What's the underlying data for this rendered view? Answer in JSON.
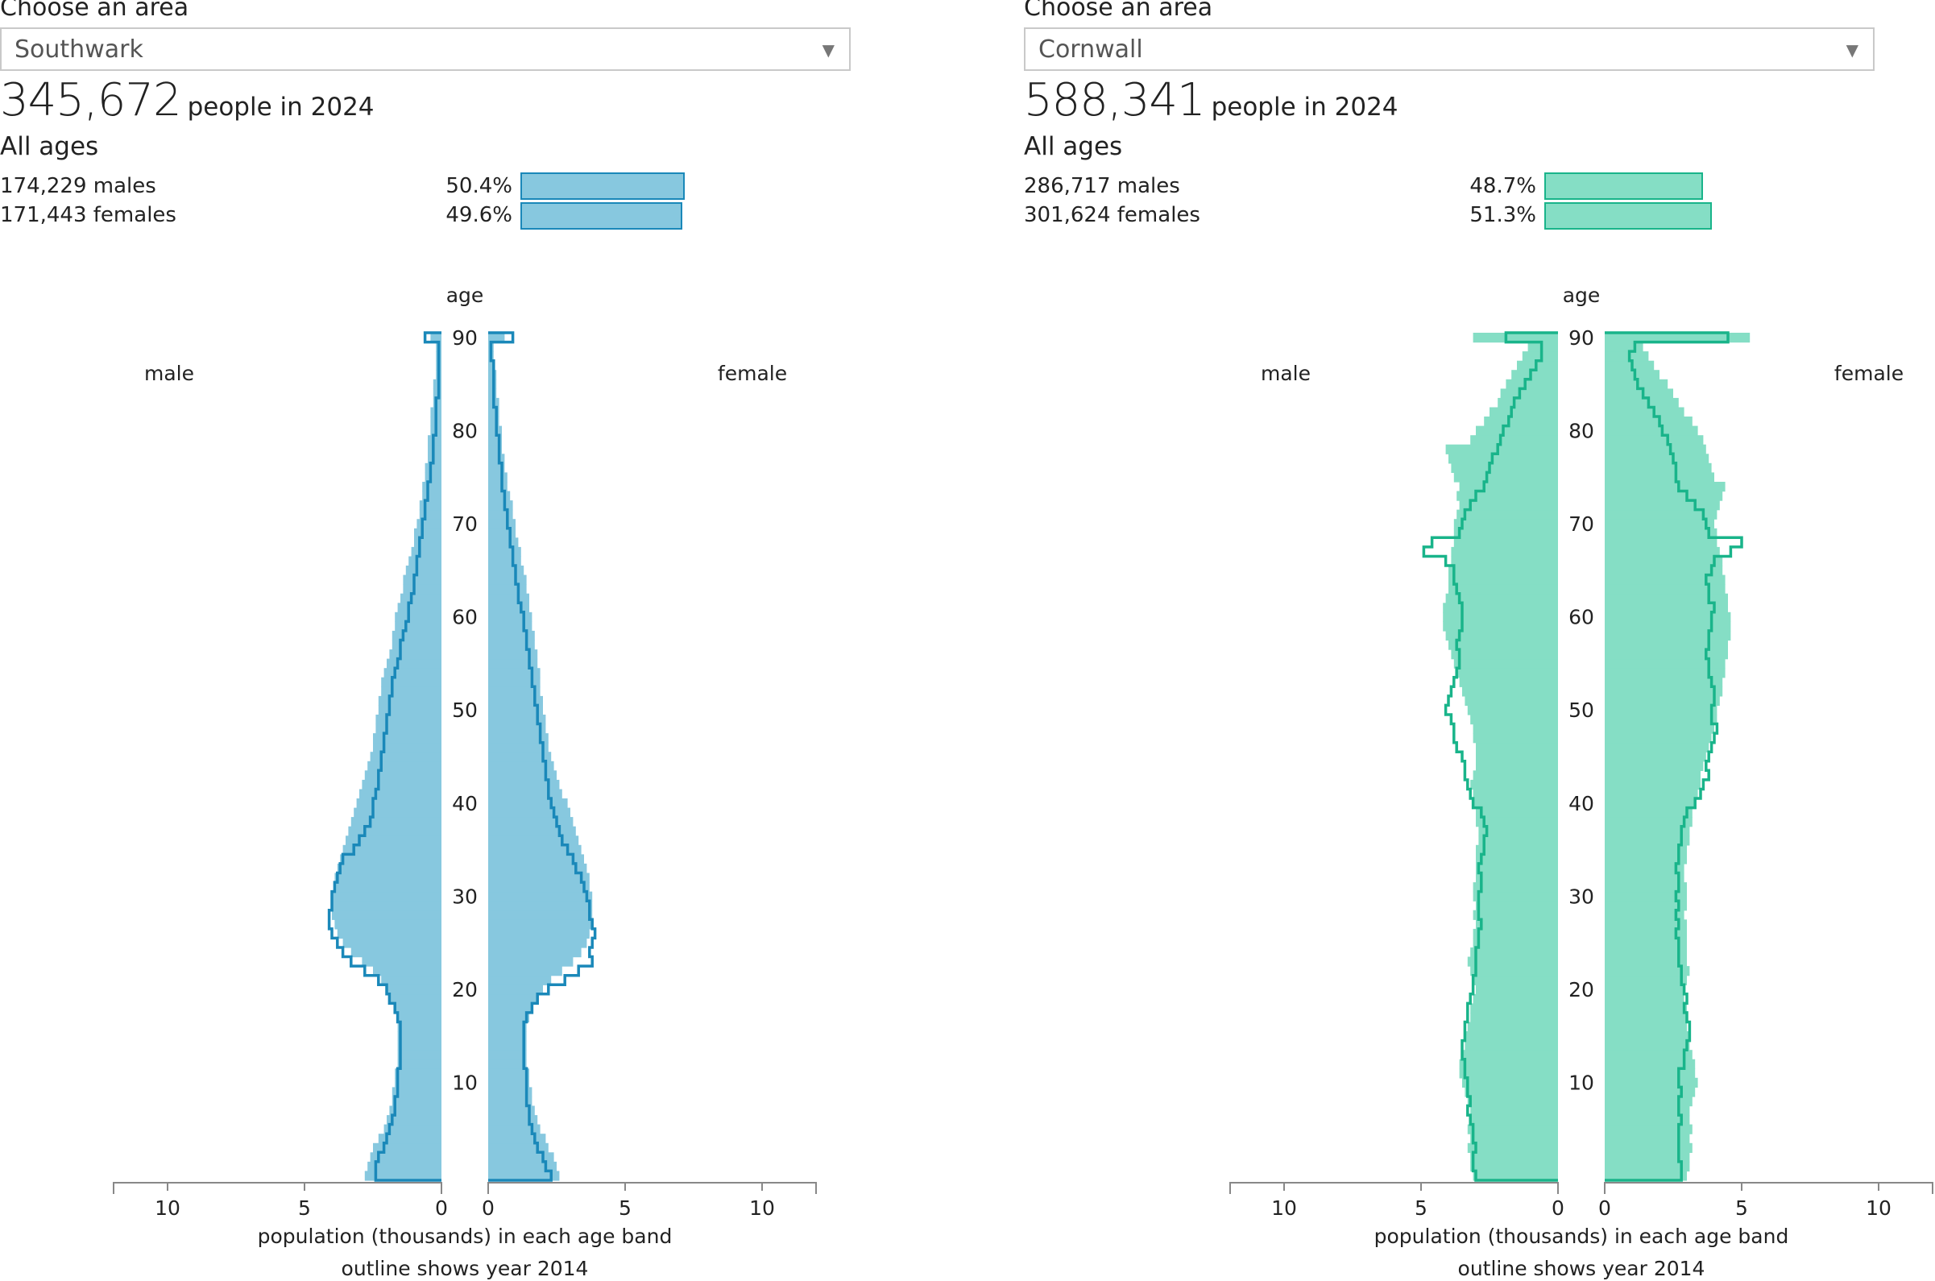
{
  "panels": [
    {
      "choose_label": "Choose an area",
      "area": "Southwark",
      "total": "345,672",
      "total_suffix": "people in 2024",
      "all_ages": "All ages",
      "males_label": "174,229 males",
      "females_label": "171,443 females",
      "male_pct": "50.4%",
      "female_pct": "49.6%",
      "male_share": 50.4,
      "female_share": 49.6,
      "color_fill": "#87c8df",
      "color_line": "#1a88b9"
    },
    {
      "choose_label": "Choose an area",
      "area": "Cornwall",
      "total": "588,341",
      "total_suffix": "people in 2024",
      "all_ages": "All ages",
      "males_label": "286,717 males",
      "females_label": "301,624 females",
      "male_pct": "48.7%",
      "female_pct": "51.3%",
      "male_share": 48.7,
      "female_share": 51.3,
      "color_fill": "#85dec5",
      "color_line": "#19b48a"
    }
  ],
  "chart_data": [
    {
      "type": "population-pyramid",
      "area": "Southwark",
      "age_label": "age",
      "male_label": "male",
      "female_label": "female",
      "xlabel": "population (thousands) in each age band",
      "note": "outline shows year 2014",
      "age_ticks": [
        10,
        20,
        30,
        40,
        50,
        60,
        70,
        80,
        90
      ],
      "x_ticks": [
        10,
        5,
        0
      ],
      "x_ticks_right": [
        0,
        5,
        10
      ],
      "xlim": [
        0,
        12
      ],
      "age_range": [
        0,
        90
      ],
      "male_2024": [
        2.8,
        2.7,
        2.6,
        2.5,
        2.3,
        2.1,
        2.0,
        1.9,
        1.8,
        1.8,
        1.7,
        1.7,
        1.6,
        1.6,
        1.6,
        1.6,
        1.6,
        1.6,
        1.7,
        1.9,
        2.0,
        2.2,
        2.5,
        2.9,
        3.3,
        3.6,
        3.8,
        3.9,
        4.0,
        4.0,
        4.0,
        3.9,
        3.9,
        3.8,
        3.7,
        3.6,
        3.5,
        3.4,
        3.3,
        3.2,
        3.1,
        3.0,
        2.9,
        2.8,
        2.7,
        2.6,
        2.5,
        2.5,
        2.4,
        2.4,
        2.3,
        2.3,
        2.2,
        2.2,
        2.1,
        2.0,
        1.9,
        1.8,
        1.8,
        1.7,
        1.7,
        1.6,
        1.5,
        1.4,
        1.4,
        1.3,
        1.2,
        1.1,
        1.0,
        1.0,
        0.9,
        0.8,
        0.8,
        0.7,
        0.7,
        0.6,
        0.6,
        0.5,
        0.5,
        0.5,
        0.4,
        0.4,
        0.4,
        0.3,
        0.3,
        0.3,
        0.2,
        0.2,
        0.2,
        0.2,
        0.4
      ],
      "female_2024": [
        2.6,
        2.5,
        2.4,
        2.2,
        2.1,
        1.9,
        1.8,
        1.7,
        1.6,
        1.6,
        1.5,
        1.5,
        1.4,
        1.4,
        1.4,
        1.4,
        1.4,
        1.5,
        1.6,
        1.8,
        2.0,
        2.3,
        2.7,
        3.1,
        3.4,
        3.6,
        3.7,
        3.8,
        3.8,
        3.8,
        3.8,
        3.7,
        3.7,
        3.6,
        3.5,
        3.4,
        3.3,
        3.2,
        3.1,
        3.0,
        2.9,
        2.7,
        2.6,
        2.5,
        2.4,
        2.3,
        2.2,
        2.2,
        2.1,
        2.1,
        2.0,
        2.0,
        1.9,
        1.9,
        1.9,
        1.8,
        1.8,
        1.7,
        1.7,
        1.6,
        1.6,
        1.5,
        1.5,
        1.4,
        1.4,
        1.3,
        1.2,
        1.2,
        1.1,
        1.0,
        1.0,
        0.9,
        0.9,
        0.8,
        0.7,
        0.7,
        0.6,
        0.6,
        0.5,
        0.5,
        0.5,
        0.4,
        0.4,
        0.4,
        0.3,
        0.3,
        0.3,
        0.2,
        0.2,
        0.2,
        0.6
      ],
      "male_2014": [
        2.4,
        2.4,
        2.3,
        2.1,
        2.0,
        1.9,
        1.8,
        1.7,
        1.7,
        1.6,
        1.6,
        1.6,
        1.5,
        1.5,
        1.5,
        1.5,
        1.5,
        1.6,
        1.7,
        1.9,
        2.0,
        2.3,
        2.8,
        3.3,
        3.6,
        3.8,
        4.0,
        4.1,
        4.1,
        4.0,
        4.0,
        3.9,
        3.8,
        3.7,
        3.6,
        3.2,
        3.0,
        2.8,
        2.6,
        2.5,
        2.5,
        2.4,
        2.3,
        2.3,
        2.2,
        2.2,
        2.1,
        2.1,
        2.0,
        2.0,
        1.9,
        1.9,
        1.8,
        1.8,
        1.7,
        1.6,
        1.5,
        1.5,
        1.4,
        1.3,
        1.2,
        1.2,
        1.1,
        1.0,
        1.0,
        0.9,
        0.9,
        0.8,
        0.8,
        0.7,
        0.7,
        0.6,
        0.6,
        0.5,
        0.5,
        0.4,
        0.4,
        0.3,
        0.3,
        0.3,
        0.2,
        0.2,
        0.2,
        0.2,
        0.1,
        0.1,
        0.1,
        0.1,
        0.1,
        0.1,
        0.6
      ],
      "female_2014": [
        2.3,
        2.1,
        2.0,
        1.8,
        1.7,
        1.6,
        1.5,
        1.5,
        1.4,
        1.4,
        1.4,
        1.4,
        1.3,
        1.3,
        1.3,
        1.3,
        1.3,
        1.4,
        1.6,
        1.8,
        2.2,
        2.8,
        3.3,
        3.8,
        3.7,
        3.8,
        3.9,
        3.8,
        3.7,
        3.7,
        3.6,
        3.5,
        3.4,
        3.2,
        3.1,
        2.9,
        2.7,
        2.6,
        2.5,
        2.4,
        2.3,
        2.2,
        2.2,
        2.1,
        2.1,
        2.0,
        2.0,
        1.9,
        1.9,
        1.8,
        1.8,
        1.7,
        1.7,
        1.6,
        1.6,
        1.5,
        1.5,
        1.4,
        1.4,
        1.3,
        1.3,
        1.2,
        1.1,
        1.1,
        1.0,
        1.0,
        0.9,
        0.9,
        0.8,
        0.8,
        0.7,
        0.7,
        0.6,
        0.6,
        0.5,
        0.5,
        0.5,
        0.4,
        0.4,
        0.4,
        0.3,
        0.3,
        0.3,
        0.2,
        0.2,
        0.2,
        0.2,
        0.2,
        0.1,
        0.1,
        0.9
      ]
    },
    {
      "type": "population-pyramid",
      "area": "Cornwall",
      "age_label": "age",
      "male_label": "male",
      "female_label": "female",
      "xlabel": "population (thousands) in each age band",
      "note": "outline shows year 2014",
      "age_ticks": [
        10,
        20,
        30,
        40,
        50,
        60,
        70,
        80,
        90
      ],
      "x_ticks": [
        10,
        5,
        0
      ],
      "x_ticks_right": [
        0,
        5,
        10
      ],
      "xlim": [
        0,
        12
      ],
      "age_range": [
        0,
        90
      ],
      "male_2024": [
        3.1,
        3.2,
        3.2,
        3.3,
        3.2,
        3.3,
        3.2,
        3.2,
        3.3,
        3.4,
        3.5,
        3.6,
        3.6,
        3.5,
        3.4,
        3.4,
        3.3,
        3.2,
        3.2,
        3.1,
        3.0,
        3.1,
        3.2,
        3.3,
        3.2,
        3.1,
        3.1,
        3.0,
        3.1,
        3.0,
        3.1,
        3.1,
        3.0,
        3.0,
        3.0,
        3.0,
        2.9,
        2.9,
        3.0,
        3.0,
        3.1,
        3.1,
        3.2,
        3.1,
        3.0,
        3.0,
        3.0,
        3.1,
        3.1,
        3.2,
        3.3,
        3.4,
        3.5,
        3.6,
        3.7,
        3.8,
        3.9,
        4.0,
        4.1,
        4.2,
        4.2,
        4.2,
        4.1,
        4.0,
        4.0,
        4.0,
        3.9,
        3.9,
        3.8,
        3.8,
        3.8,
        3.7,
        3.6,
        3.7,
        3.6,
        3.8,
        3.9,
        4.0,
        4.1,
        3.2,
        3.0,
        2.7,
        2.5,
        2.2,
        2.1,
        1.9,
        1.7,
        1.5,
        1.3,
        1.1,
        3.1
      ],
      "female_2024": [
        3.0,
        3.1,
        3.1,
        3.2,
        3.1,
        3.2,
        3.1,
        3.1,
        3.2,
        3.3,
        3.4,
        3.3,
        3.3,
        3.2,
        3.1,
        3.1,
        3.0,
        3.0,
        3.0,
        2.9,
        2.9,
        3.0,
        3.1,
        3.0,
        3.0,
        3.0,
        3.0,
        3.0,
        2.9,
        3.0,
        3.0,
        3.0,
        2.9,
        2.9,
        3.0,
        3.0,
        3.1,
        3.1,
        3.2,
        3.2,
        3.3,
        3.4,
        3.5,
        3.5,
        3.6,
        3.7,
        3.8,
        3.9,
        4.0,
        4.1,
        4.1,
        4.2,
        4.3,
        4.3,
        4.4,
        4.4,
        4.5,
        4.5,
        4.6,
        4.6,
        4.6,
        4.5,
        4.5,
        4.4,
        4.4,
        4.3,
        4.3,
        4.2,
        4.1,
        4.1,
        4.0,
        4.1,
        4.2,
        4.3,
        4.4,
        4.0,
        3.9,
        3.8,
        3.7,
        3.6,
        3.4,
        3.2,
        2.9,
        2.7,
        2.5,
        2.3,
        2.0,
        1.8,
        1.6,
        1.4,
        5.3
      ],
      "male_2014": [
        3.0,
        3.1,
        3.1,
        3.0,
        3.1,
        3.1,
        3.2,
        3.3,
        3.2,
        3.3,
        3.3,
        3.4,
        3.4,
        3.5,
        3.5,
        3.4,
        3.4,
        3.3,
        3.3,
        3.2,
        3.1,
        3.1,
        3.0,
        3.0,
        3.0,
        2.9,
        2.9,
        2.8,
        2.9,
        2.9,
        2.9,
        2.8,
        2.8,
        2.9,
        2.8,
        2.7,
        2.7,
        2.6,
        2.7,
        2.8,
        3.1,
        3.2,
        3.3,
        3.4,
        3.4,
        3.5,
        3.7,
        3.8,
        3.8,
        3.9,
        4.1,
        4.0,
        3.9,
        3.8,
        3.7,
        3.6,
        3.6,
        3.7,
        3.6,
        3.5,
        3.5,
        3.5,
        3.6,
        3.7,
        3.8,
        3.8,
        4.1,
        4.9,
        4.6,
        3.6,
        3.5,
        3.4,
        3.2,
        3.0,
        2.7,
        2.6,
        2.5,
        2.4,
        2.2,
        2.1,
        2.0,
        1.8,
        1.7,
        1.6,
        1.4,
        1.2,
        1.0,
        0.8,
        0.6,
        0.6,
        1.9
      ],
      "female_2014": [
        2.8,
        2.8,
        2.7,
        2.7,
        2.7,
        2.7,
        2.8,
        2.7,
        2.7,
        2.8,
        2.7,
        2.7,
        2.9,
        2.9,
        3.0,
        3.1,
        3.1,
        3.0,
        2.9,
        3.0,
        2.9,
        2.8,
        2.8,
        2.7,
        2.7,
        2.7,
        2.6,
        2.7,
        2.6,
        2.7,
        2.6,
        2.7,
        2.7,
        2.6,
        2.7,
        2.7,
        2.8,
        2.8,
        2.9,
        3.0,
        3.3,
        3.5,
        3.6,
        3.8,
        3.7,
        3.8,
        3.9,
        4.0,
        4.1,
        3.9,
        3.9,
        4.0,
        4.0,
        3.9,
        3.8,
        3.8,
        3.7,
        3.8,
        3.8,
        3.9,
        3.9,
        4.0,
        3.8,
        3.8,
        3.7,
        3.9,
        4.0,
        4.6,
        5.0,
        3.8,
        3.7,
        3.6,
        3.3,
        3.0,
        2.7,
        2.6,
        2.6,
        2.5,
        2.4,
        2.3,
        2.1,
        2.0,
        1.8,
        1.6,
        1.4,
        1.2,
        1.1,
        1.0,
        0.9,
        1.1,
        4.5
      ]
    }
  ]
}
